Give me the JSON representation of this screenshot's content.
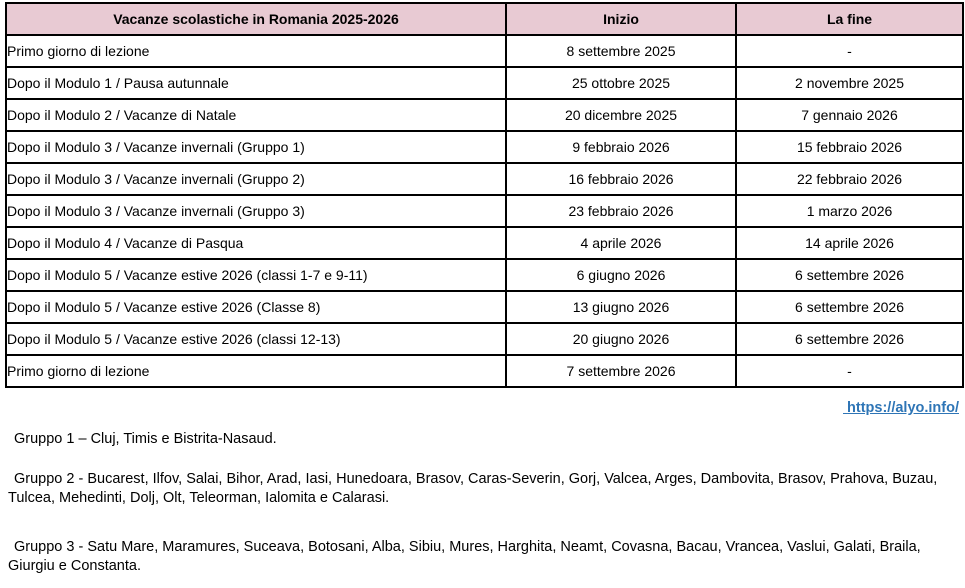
{
  "table": {
    "headers": [
      "Vacanze scolastiche in Romania 2025-2026",
      "Inizio",
      "La fine"
    ],
    "rows": [
      [
        "Primo giorno di lezione",
        "8 settembre 2025",
        "-"
      ],
      [
        "Dopo il Modulo 1 / Pausa autunnale",
        "25 ottobre 2025",
        "2 novembre 2025"
      ],
      [
        "Dopo il Modulo 2 / Vacanze di Natale",
        "20 dicembre 2025",
        "7 gennaio 2026"
      ],
      [
        "Dopo il Modulo 3 / Vacanze invernali (Gruppo 1)",
        "9 febbraio 2026",
        "15 febbraio 2026"
      ],
      [
        "Dopo il Modulo 3 / Vacanze invernali (Gruppo 2)",
        "16 febbraio 2026",
        "22 febbraio 2026"
      ],
      [
        "Dopo il Modulo 3 / Vacanze invernali (Gruppo 3)",
        "23 febbraio 2026",
        "1 marzo 2026"
      ],
      [
        "Dopo il Modulo 4 / Vacanze di Pasqua",
        "4 aprile 2026",
        "14 aprile 2026"
      ],
      [
        "Dopo il Modulo 5 / Vacanze estive 2026 (classi 1-7 e 9-11)",
        "6 giugno 2026",
        "6 settembre 2026"
      ],
      [
        "Dopo il Modulo 5 / Vacanze estive 2026 (Classe 8)",
        "13 giugno 2026",
        "6 settembre 2026"
      ],
      [
        "Dopo il Modulo 5 / Vacanze estive 2026 (classi 12-13)",
        "20 giugno 2026",
        "6 settembre 2026"
      ],
      [
        "Primo giorno di lezione",
        "7 settembre 2026",
        "-"
      ]
    ]
  },
  "link": {
    "text": "https://alyo.info/"
  },
  "notes": [
    "Gruppo 1 – Cluj, Timis e Bistrita-Nasaud.",
    "Gruppo 2 - Bucarest, Ilfov, Salai, Bihor, Arad, Iasi, Hunedoara, Brasov, Caras-Severin, Gorj, Valcea, Arges, Dambovita, Brasov, Prahova, Buzau, Tulcea, Mehedinti, Dolj, Olt, Teleorman, Ialomita e Calarasi.",
    "Gruppo 3 - Satu Mare, Maramures, Suceava, Botosani, Alba, Sibiu, Mures, Harghita, Neamt, Covasna, Bacau, Vrancea, Vaslui, Galati, Braila, Giurgiu e Constanta."
  ],
  "colors": {
    "header_bg": "#e8cad3",
    "border": "#000000",
    "link": "#2e75b6",
    "text": "#000000"
  }
}
